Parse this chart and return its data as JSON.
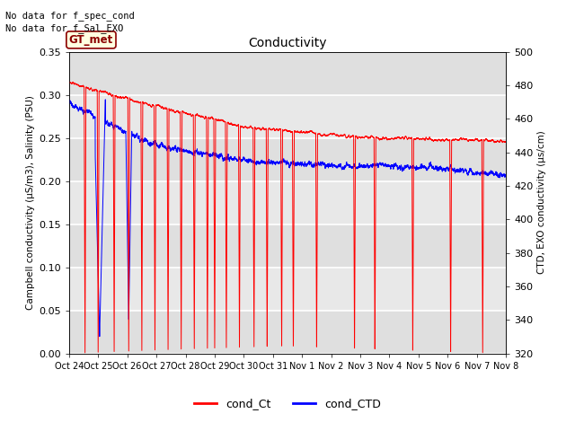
{
  "title": "Conductivity",
  "ylabel_left": "Campbell conductivity (µS/m3), Salinity (PSU)",
  "ylabel_right": "CTD, EXO conductivity (µs/cm)",
  "ylim_left": [
    0.0,
    0.35
  ],
  "ylim_right": [
    320,
    500
  ],
  "yticks_left": [
    0.0,
    0.05,
    0.1,
    0.15,
    0.2,
    0.25,
    0.3,
    0.35
  ],
  "yticks_right": [
    320,
    340,
    360,
    380,
    400,
    420,
    440,
    460,
    480,
    500
  ],
  "xtick_labels": [
    "Oct 24",
    "Oct 25",
    "Oct 26",
    "Oct 27",
    "Oct 28",
    "Oct 29",
    "Oct 30",
    "Oct 31",
    "Nov 1",
    "Nov 2",
    "Nov 3",
    "Nov 4",
    "Nov 5",
    "Nov 6",
    "Nov 7",
    "Nov 8"
  ],
  "annotations": [
    "No data for f_spec_cond",
    "No data for f_Sal_EXO"
  ],
  "gt_met_label": "GT_met",
  "legend_entries": [
    "cond_Ct",
    "cond_CTD"
  ],
  "legend_colors": [
    "red",
    "blue"
  ],
  "bg_outer": "#ffffff",
  "bg_plot": "#e8e8e8",
  "band_light": "#f0f0f0",
  "band_dark": "#e0e0e0",
  "grid_color": "#ffffff"
}
